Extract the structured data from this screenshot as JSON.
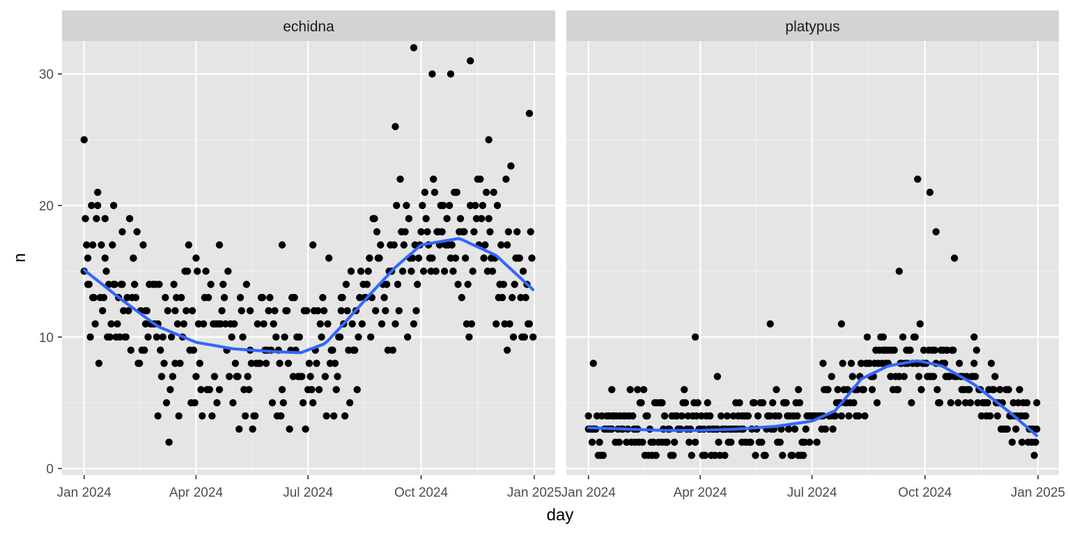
{
  "chart_data": {
    "type": "scatter",
    "xlabel": "day",
    "ylabel": "n",
    "xlim": [
      "2023-12-14",
      "2025-01-18"
    ],
    "ylim": [
      -0.5,
      32.5
    ],
    "x_ticks": [
      "2024-01-01",
      "2024-04-01",
      "2024-07-01",
      "2024-10-01",
      "2025-01-01"
    ],
    "x_tick_labels": [
      "Jan 2024",
      "Apr 2024",
      "Jul 2024",
      "Oct 2024",
      "Jan 2025"
    ],
    "y_ticks": [
      0,
      10,
      20,
      30
    ],
    "y_tick_labels": [
      "0",
      "10",
      "20",
      "30"
    ],
    "grid": true,
    "background": "#e5e5e5",
    "strip_background": "#d3d3d3",
    "point_color": "#000000",
    "smooth_color": "#3366ff",
    "panels": [
      {
        "strip": "echidna",
        "points_sample": {
          "x": [
            "2024-01-01",
            "2024-01-04",
            "2024-01-08",
            "2024-01-12",
            "2024-01-18",
            "2024-01-25",
            "2024-02-01",
            "2024-02-10",
            "2024-02-20",
            "2024-03-01",
            "2024-03-15",
            "2024-04-01",
            "2024-04-20",
            "2024-05-15",
            "2024-06-10",
            "2024-07-05",
            "2024-07-28",
            "2024-08-20",
            "2024-09-10",
            "2024-09-25",
            "2024-10-10",
            "2024-10-25",
            "2024-11-10",
            "2024-11-25",
            "2024-12-10",
            "2024-12-28"
          ],
          "y": [
            25,
            16,
            17,
            21,
            19,
            20,
            18,
            16,
            12,
            11,
            12,
            16,
            17,
            12,
            17,
            17,
            12,
            16,
            26,
            32,
            30,
            30,
            31,
            25,
            17,
            27
          ]
        },
        "smooth": {
          "x": [
            "2024-01-01",
            "2024-02-01",
            "2024-03-01",
            "2024-04-01",
            "2024-05-01",
            "2024-06-01",
            "2024-06-25",
            "2024-07-15",
            "2024-08-01",
            "2024-08-20",
            "2024-09-10",
            "2024-10-01",
            "2024-11-01",
            "2024-12-01",
            "2024-12-31"
          ],
          "y": [
            15.1,
            12.8,
            10.8,
            9.6,
            9.1,
            8.9,
            8.8,
            9.5,
            11.2,
            13.2,
            15.3,
            17.0,
            17.5,
            16.2,
            13.6
          ]
        }
      },
      {
        "strip": "platypus",
        "points_sample": {
          "x": [
            "2024-01-01",
            "2024-01-05",
            "2024-01-20",
            "2024-02-10",
            "2024-03-01",
            "2024-03-28",
            "2024-04-15",
            "2024-05-05",
            "2024-05-28",
            "2024-06-20",
            "2024-07-10",
            "2024-07-25",
            "2024-08-10",
            "2024-08-28",
            "2024-09-10",
            "2024-09-25",
            "2024-10-05",
            "2024-10-10",
            "2024-10-25",
            "2024-11-10",
            "2024-12-01",
            "2024-12-31"
          ],
          "y": [
            3,
            8,
            6,
            6,
            5,
            10,
            7,
            4,
            11,
            6,
            8,
            11,
            8,
            10,
            15,
            22,
            21,
            18,
            16,
            10,
            6,
            5
          ]
        },
        "smooth": {
          "x": [
            "2024-01-01",
            "2024-02-01",
            "2024-03-01",
            "2024-04-01",
            "2024-05-01",
            "2024-06-01",
            "2024-07-01",
            "2024-07-20",
            "2024-08-10",
            "2024-09-01",
            "2024-09-25",
            "2024-10-15",
            "2024-11-10",
            "2024-12-10",
            "2024-12-31"
          ],
          "y": [
            3.1,
            3.0,
            2.9,
            2.9,
            3.0,
            3.2,
            3.6,
            4.4,
            6.8,
            7.8,
            8.2,
            7.8,
            6.4,
            4.2,
            2.5
          ]
        }
      }
    ]
  }
}
